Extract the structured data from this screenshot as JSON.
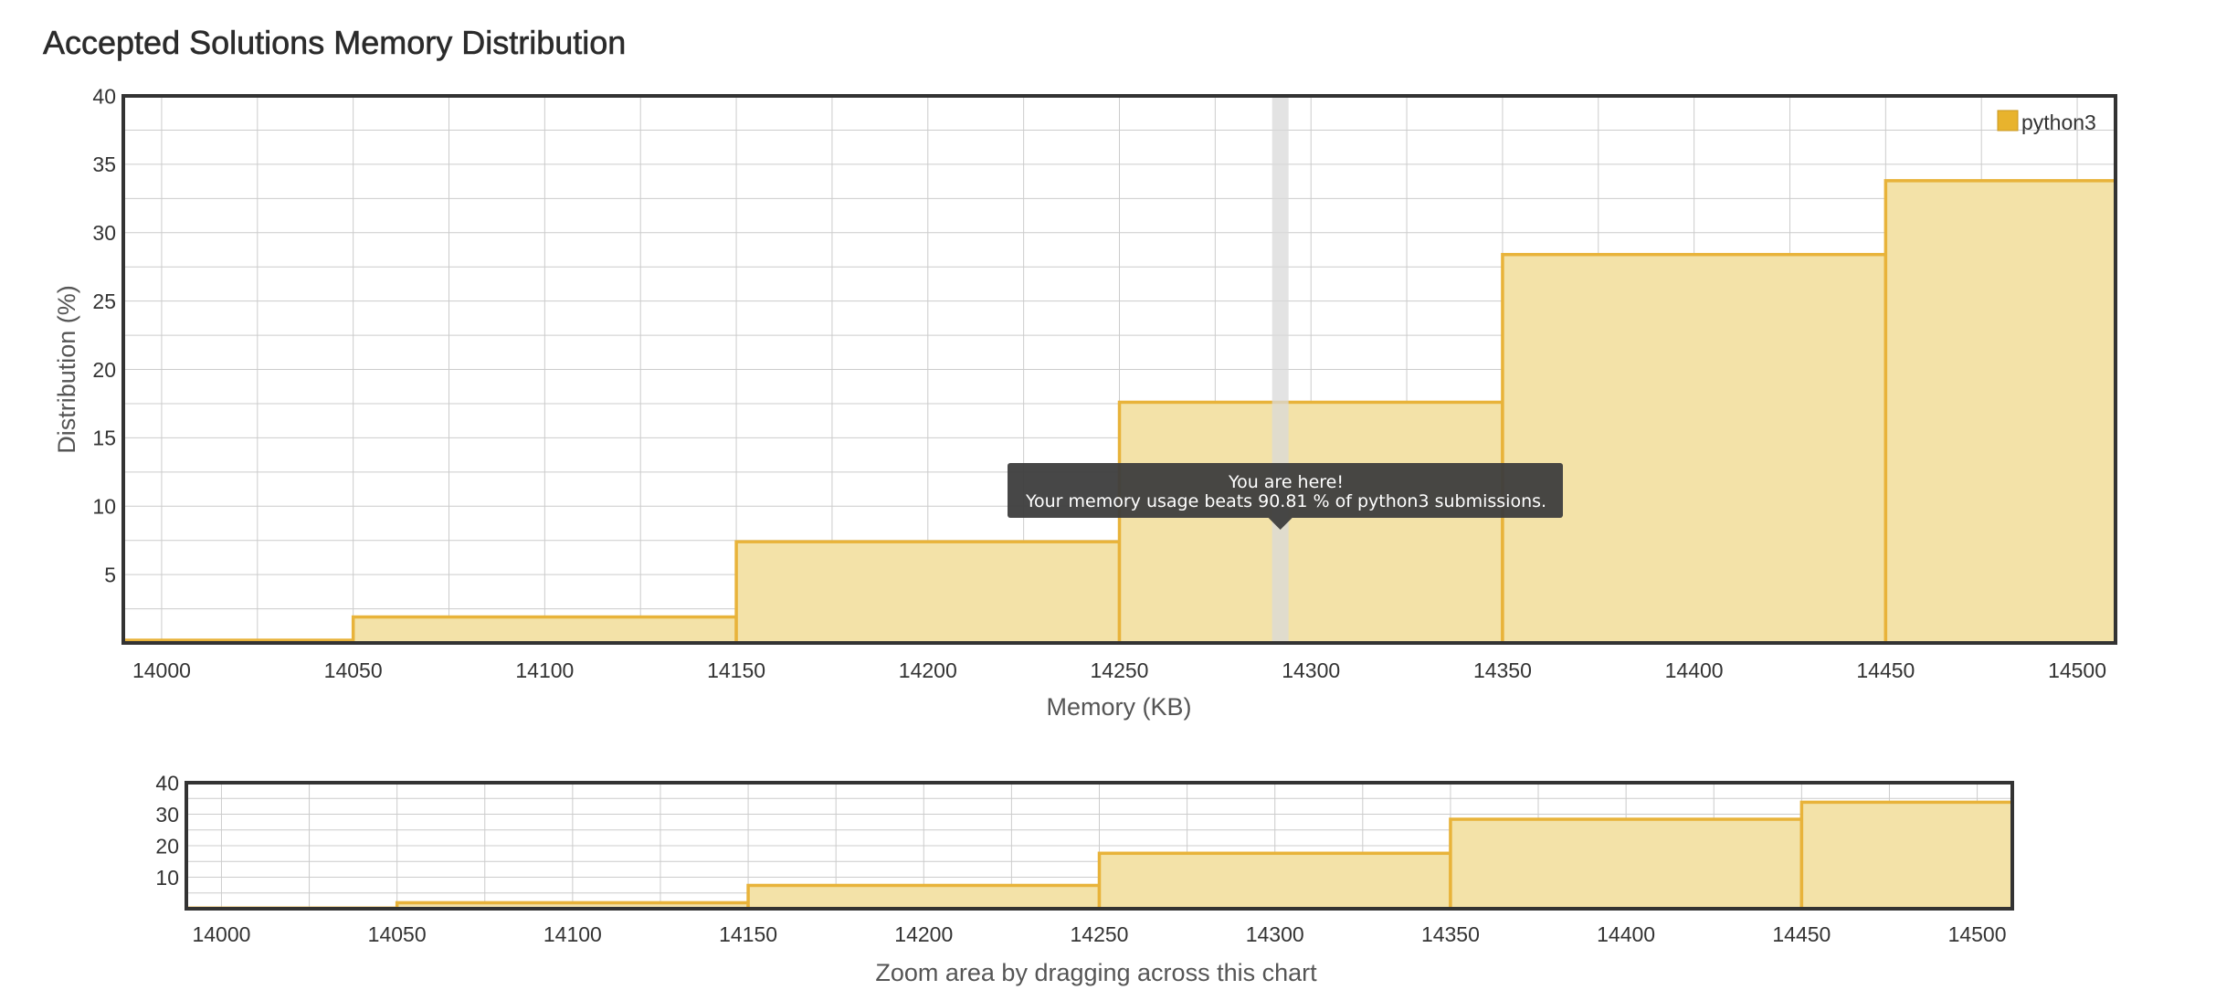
{
  "page": {
    "title": "Accepted Solutions Memory Distribution"
  },
  "colors": {
    "bar_fill": "#f3e2a8",
    "bar_stroke": "#e8b33a",
    "legend_swatch": "#e8b32d",
    "grid": "#cccccc",
    "frame": "#333333",
    "tooltip_bg": "#3d3d3d",
    "you_marker": "#d9d9d9"
  },
  "chart_data": [
    {
      "type": "bar",
      "title": "",
      "xlabel": "Memory (KB)",
      "ylabel": "Distribution (%)",
      "xlim": [
        13990,
        14510
      ],
      "ylim": [
        0,
        40
      ],
      "x_ticks": [
        14000,
        14050,
        14100,
        14150,
        14200,
        14250,
        14300,
        14350,
        14400,
        14450,
        14500
      ],
      "y_ticks": [
        5,
        10,
        15,
        20,
        25,
        30,
        35,
        40
      ],
      "grid": true,
      "legend": {
        "position": "top-right",
        "entries": [
          "python3"
        ]
      },
      "series": [
        {
          "name": "python3",
          "bins": [
            {
              "x_start": 13990,
              "x_end": 14050,
              "value": 0.2
            },
            {
              "x_start": 14050,
              "x_end": 14150,
              "value": 1.9
            },
            {
              "x_start": 14150,
              "x_end": 14250,
              "value": 7.4
            },
            {
              "x_start": 14250,
              "x_end": 14350,
              "value": 17.6
            },
            {
              "x_start": 14350,
              "x_end": 14450,
              "value": 28.4
            },
            {
              "x_start": 14450,
              "x_end": 14510,
              "value": 33.8
            }
          ]
        }
      ],
      "highlight": {
        "x": 14292,
        "tooltip_title": "You are here!",
        "tooltip_text": "Your memory usage beats 90.81 % of python3 submissions."
      }
    },
    {
      "type": "bar",
      "title": "",
      "xlabel": "Zoom area by dragging across this chart",
      "ylabel": "",
      "xlim": [
        13990,
        14510
      ],
      "ylim": [
        0,
        40
      ],
      "x_ticks": [
        14000,
        14050,
        14100,
        14150,
        14200,
        14250,
        14300,
        14350,
        14400,
        14450,
        14500
      ],
      "y_ticks": [
        10,
        20,
        30,
        40
      ],
      "grid": true,
      "series": [
        {
          "name": "python3",
          "bins": [
            {
              "x_start": 13990,
              "x_end": 14050,
              "value": 0.2
            },
            {
              "x_start": 14050,
              "x_end": 14150,
              "value": 1.9
            },
            {
              "x_start": 14150,
              "x_end": 14250,
              "value": 7.4
            },
            {
              "x_start": 14250,
              "x_end": 14350,
              "value": 17.6
            },
            {
              "x_start": 14350,
              "x_end": 14450,
              "value": 28.4
            },
            {
              "x_start": 14450,
              "x_end": 14510,
              "value": 33.8
            }
          ]
        }
      ]
    }
  ]
}
